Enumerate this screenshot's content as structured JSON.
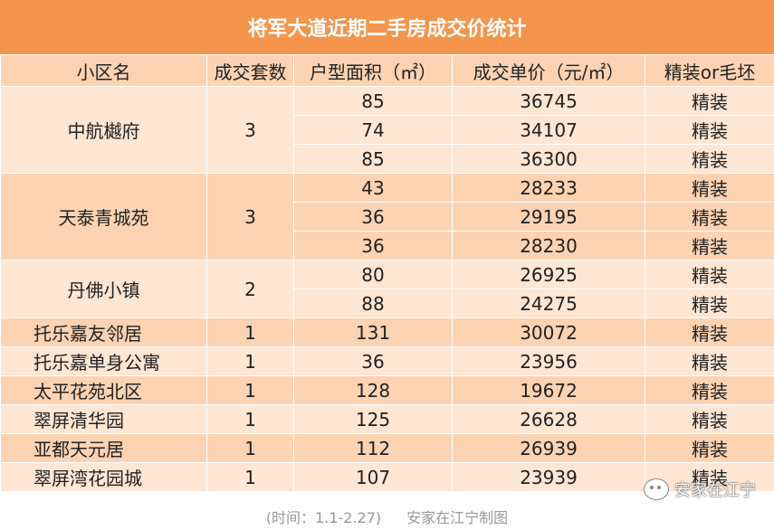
{
  "title": "将军大道近期二手房成交价统计",
  "headers": [
    "小区名",
    "成交套数",
    "户型面积（㎡）",
    "成交单价（元/㎡）",
    "精装or毛坯"
  ],
  "communities": [
    {
      "name": "中航樾府",
      "count": "3",
      "units": [
        {
          "area": "85",
          "price": "36745",
          "decor": "精装"
        },
        {
          "area": "74",
          "price": "34107",
          "decor": "精装"
        },
        {
          "area": "85",
          "price": "36300",
          "decor": "精装"
        }
      ]
    },
    {
      "name": "天泰青城苑",
      "count": "3",
      "units": [
        {
          "area": "43",
          "price": "28233",
          "decor": "精装"
        },
        {
          "area": "36",
          "price": "29195",
          "decor": "精装"
        },
        {
          "area": "36",
          "price": "28230",
          "decor": "精装"
        }
      ]
    },
    {
      "name": "丹佛小镇",
      "count": "2",
      "units": [
        {
          "area": "80",
          "price": "26925",
          "decor": "精装"
        },
        {
          "area": "88",
          "price": "24275",
          "decor": "精装"
        }
      ]
    },
    {
      "name": "托乐嘉友邻居",
      "count": "1",
      "units": [
        {
          "area": "131",
          "price": "30072",
          "decor": "精装"
        }
      ]
    },
    {
      "name": "托乐嘉单身公寓",
      "count": "1",
      "units": [
        {
          "area": "36",
          "price": "23956",
          "decor": "精装"
        }
      ]
    },
    {
      "name": "太平花苑北区",
      "count": "1",
      "units": [
        {
          "area": "128",
          "price": "19672",
          "decor": "精装"
        }
      ]
    },
    {
      "name": "翠屏清华园",
      "count": "1",
      "units": [
        {
          "area": "125",
          "price": "26628",
          "decor": "精装"
        }
      ]
    },
    {
      "name": "亚都天元居",
      "count": "1",
      "units": [
        {
          "area": "112",
          "price": "26939",
          "decor": "精装"
        }
      ]
    },
    {
      "name": "翠屏湾花园城",
      "count": "1",
      "units": [
        {
          "area": "107",
          "price": "23939",
          "decor": "精装"
        }
      ]
    }
  ],
  "footer": {
    "date": "(时间：1.1-2.27)",
    "credit": "安家在江宁制图"
  },
  "watermark": {
    "text": "安家在江宁",
    "icon": "wechat-icon"
  },
  "colors": {
    "header_orange": "#f5954d",
    "row_light": "#fde6d4",
    "row_dark": "#fbd3b3",
    "footer_gray": "#9a9a9a"
  }
}
